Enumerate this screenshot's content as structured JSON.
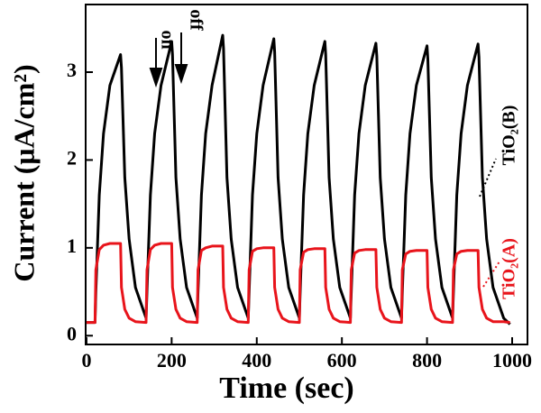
{
  "chart_data": {
    "type": "line",
    "x_label": "Time (sec)",
    "y_label": "Current (μA/cm²)",
    "annotations": [
      "on",
      "off",
      "TiO₂(B)",
      "TiO₂(A)"
    ],
    "x": [
      0,
      20,
      22,
      30,
      40,
      55,
      80,
      82,
      90,
      100,
      115,
      140,
      142,
      150,
      160,
      175,
      200,
      202,
      210,
      220,
      235,
      260,
      262,
      270,
      280,
      295,
      320,
      322,
      330,
      340,
      355,
      380,
      382,
      390,
      400,
      415,
      440,
      442,
      450,
      460,
      475,
      500,
      502,
      510,
      520,
      535,
      560,
      562,
      570,
      580,
      595,
      620,
      622,
      630,
      640,
      655,
      680,
      682,
      690,
      700,
      715,
      740,
      742,
      750,
      760,
      775,
      800,
      802,
      810,
      820,
      835,
      860,
      862,
      870,
      880,
      895,
      920,
      922,
      930,
      940,
      955,
      980,
      995
    ],
    "series": [
      {
        "name": "TiO₂(B)",
        "color": "#000000",
        "values": [
          0.15,
          0.15,
          0.5,
          1.6,
          2.3,
          2.85,
          3.2,
          3.05,
          1.8,
          1.1,
          0.55,
          0.2,
          0.5,
          1.6,
          2.3,
          2.85,
          3.35,
          3.2,
          1.8,
          1.1,
          0.55,
          0.2,
          0.5,
          1.6,
          2.3,
          2.85,
          3.42,
          3.27,
          1.8,
          1.1,
          0.55,
          0.2,
          0.5,
          1.6,
          2.3,
          2.85,
          3.38,
          3.23,
          1.8,
          1.1,
          0.55,
          0.2,
          0.5,
          1.6,
          2.3,
          2.85,
          3.35,
          3.2,
          1.8,
          1.1,
          0.55,
          0.2,
          0.5,
          1.6,
          2.3,
          2.85,
          3.33,
          3.18,
          1.8,
          1.1,
          0.55,
          0.2,
          0.5,
          1.6,
          2.3,
          2.85,
          3.3,
          3.15,
          1.8,
          1.1,
          0.55,
          0.2,
          0.5,
          1.6,
          2.3,
          2.85,
          3.32,
          3.17,
          1.8,
          1.1,
          0.55,
          0.2,
          0.13
        ]
      },
      {
        "name": "TiO₂(A)",
        "color": "#e8141b",
        "values": [
          0.15,
          0.15,
          0.75,
          0.98,
          1.03,
          1.05,
          1.05,
          0.55,
          0.3,
          0.2,
          0.16,
          0.15,
          0.75,
          0.98,
          1.03,
          1.05,
          1.05,
          0.55,
          0.3,
          0.2,
          0.16,
          0.15,
          0.75,
          0.97,
          1.0,
          1.02,
          1.02,
          0.55,
          0.3,
          0.2,
          0.16,
          0.15,
          0.75,
          0.96,
          0.99,
          1.0,
          1.0,
          0.55,
          0.3,
          0.2,
          0.16,
          0.15,
          0.75,
          0.95,
          0.98,
          0.99,
          0.99,
          0.55,
          0.3,
          0.2,
          0.16,
          0.15,
          0.75,
          0.94,
          0.97,
          0.98,
          0.98,
          0.55,
          0.3,
          0.2,
          0.16,
          0.15,
          0.75,
          0.93,
          0.96,
          0.97,
          0.97,
          0.55,
          0.3,
          0.2,
          0.16,
          0.15,
          0.75,
          0.93,
          0.96,
          0.97,
          0.97,
          0.55,
          0.3,
          0.2,
          0.16,
          0.16,
          0.15
        ]
      }
    ],
    "xlim": [
      -2,
      1036
    ],
    "ylim": [
      -0.1,
      3.77
    ],
    "xticks": [
      0,
      200,
      400,
      600,
      800,
      1000
    ],
    "yticks": [
      0,
      1,
      2,
      3
    ]
  }
}
